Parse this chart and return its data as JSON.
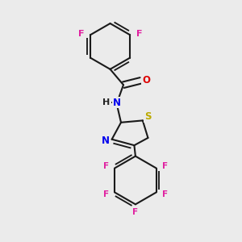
{
  "bg_color": "#ebebeb",
  "bond_color": "#1a1a1a",
  "bond_width": 1.5,
  "dbo": 0.08,
  "atom_colors": {
    "F": "#e020a0",
    "O": "#dd0000",
    "N": "#0000ee",
    "S": "#bbaa00",
    "H": "#222222",
    "C": "#1a1a1a"
  },
  "font_size": 8.5,
  "font_size_f": 8.0
}
